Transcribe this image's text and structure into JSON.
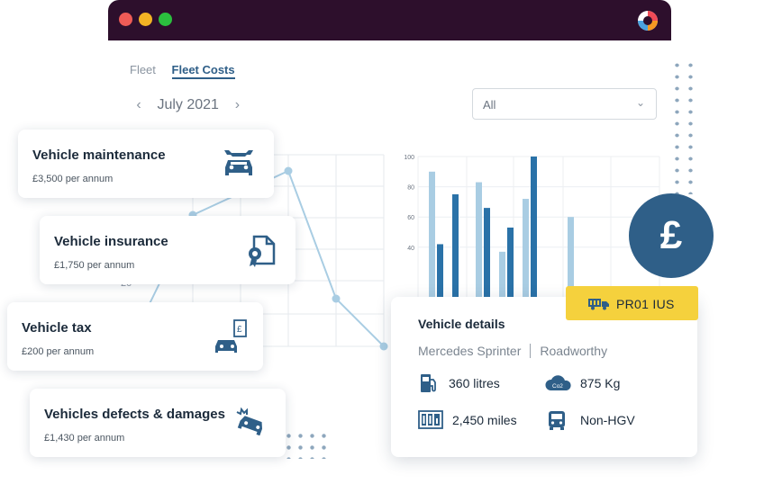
{
  "window": {
    "colors": {
      "titlebar": "#2d0f2c",
      "accent": "#2f5f88",
      "plate": "#f5d13d"
    }
  },
  "tabs": [
    {
      "label": "Fleet",
      "active": false
    },
    {
      "label": "Fleet Costs",
      "active": true
    }
  ],
  "month_nav": {
    "prev_icon": "chevron-left-icon",
    "month": "July 2021",
    "next_icon": "chevron-right-icon"
  },
  "filter": {
    "value": "All",
    "icon": "chevron-down-icon"
  },
  "cost_cards": [
    {
      "title": "Vehicle maintenance",
      "sub": "£3,500 per annum",
      "icon": "car-wrench-icon"
    },
    {
      "title": "Vehicle insurance",
      "sub": "£1,750 per annum",
      "icon": "insurance-certificate-icon"
    },
    {
      "title": "Vehicle tax",
      "sub": "£200 per annum",
      "icon": "car-tax-receipt-icon"
    },
    {
      "title": "Vehicles defects & damages",
      "sub": "£1,430 per annum",
      "icon": "car-crash-icon"
    }
  ],
  "line_chart": {
    "partial_tick": "20"
  },
  "chart_data": {
    "type": "bar",
    "y_ticks": [
      "100",
      "80",
      "60",
      "40"
    ],
    "ylim": [
      0,
      100
    ],
    "grid": true,
    "series": [
      {
        "values": [
          90,
          null,
          83,
          37,
          72,
          60
        ],
        "color": "#a9cde3"
      },
      {
        "values": [
          42,
          75,
          66,
          53,
          100,
          null
        ],
        "color": "#2a72a8"
      }
    ]
  },
  "details": {
    "title": "Vehicle details",
    "model": "Mercedes Sprinter",
    "status": "Roadworthy",
    "fuel": "360 litres",
    "co2": "875 Kg",
    "co2_icon_label": "Co2",
    "mileage": "2,450 miles",
    "class": "Non-HGV"
  },
  "plate": {
    "text": "PR01 IUS",
    "icon": "truck-icon"
  },
  "pound_badge": {
    "symbol": "£"
  }
}
